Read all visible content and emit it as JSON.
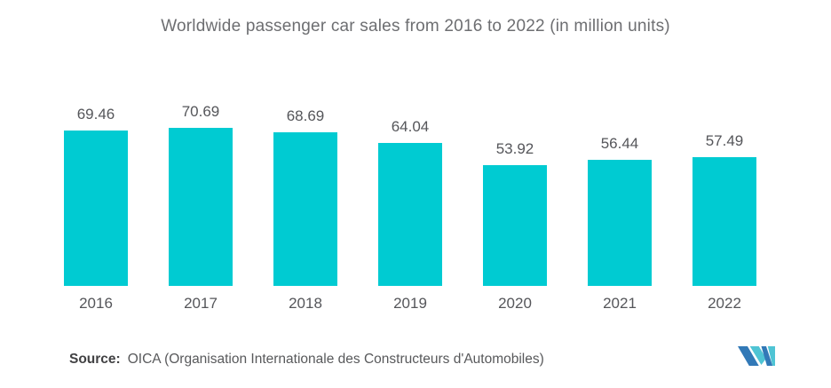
{
  "title": "Worldwide passenger car sales from 2016 to 2022 (in million units)",
  "chart_data": {
    "type": "bar",
    "title": "Worldwide passenger car sales from 2016 to 2022 (in million units)",
    "categories": [
      "2016",
      "2017",
      "2018",
      "2019",
      "2020",
      "2021",
      "2022"
    ],
    "values": [
      69.46,
      70.69,
      68.69,
      64.04,
      53.92,
      56.44,
      57.49
    ],
    "value_labels": [
      "69.46",
      "70.69",
      "68.69",
      "64.04",
      "53.92",
      "56.44",
      "57.49"
    ],
    "xlabel": "",
    "ylabel": "",
    "unit": "million units",
    "ylim": [
      0,
      80
    ],
    "axes_visible": false,
    "grid": false,
    "legend": "none",
    "data_labels_position": "above-bars"
  },
  "source": {
    "label": "Source:",
    "text": "OICA (Organisation Internationale des Constructeurs d'Automobiles)"
  },
  "logo": {
    "name": "mordor-intelligence-logo"
  },
  "colors": {
    "bar": "#00CBD2",
    "title_text": "#6d6e71",
    "label_text": "#55565a",
    "source_text": "#58595b",
    "logo_dark_blue": "#3279B7",
    "logo_teal": "#4FC4D4"
  }
}
